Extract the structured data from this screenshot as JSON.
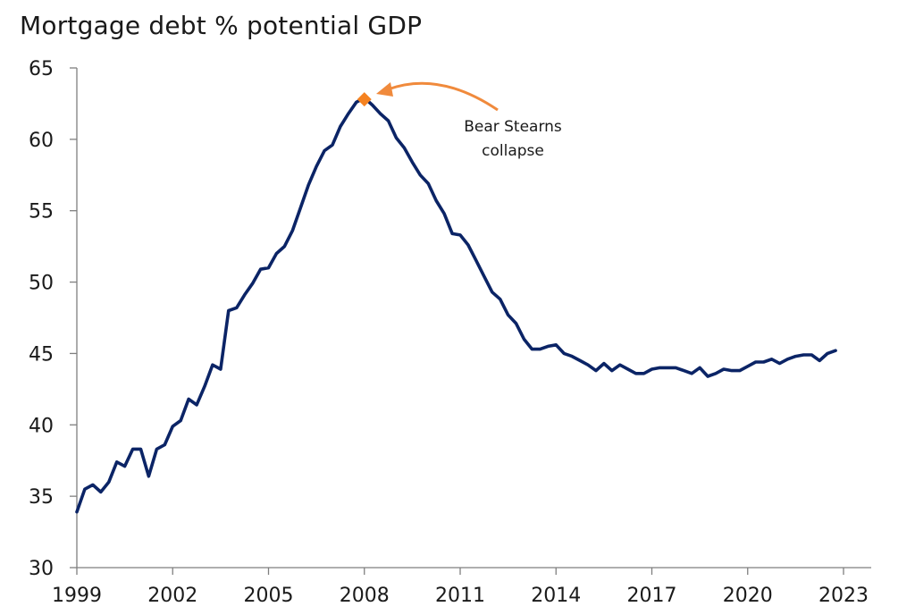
{
  "chart_data": {
    "type": "line",
    "title": "Mortgage debt % potential GDP",
    "xlabel": "",
    "ylabel": "",
    "xlim": [
      1999,
      2023.6
    ],
    "ylim": [
      30,
      65
    ],
    "y_ticks": [
      30,
      35,
      40,
      45,
      50,
      55,
      60,
      65
    ],
    "x_ticks": [
      1999,
      2002,
      2005,
      2008,
      2011,
      2014,
      2017,
      2020,
      2023
    ],
    "grid": false,
    "legend": "none",
    "series": [
      {
        "color": "#0b2466",
        "x": [
          1999.0,
          1999.25,
          1999.5,
          1999.75,
          2000.0,
          2000.25,
          2000.5,
          2000.75,
          2001.0,
          2001.25,
          2001.5,
          2001.75,
          2002.0,
          2002.25,
          2002.5,
          2002.75,
          2003.0,
          2003.25,
          2003.5,
          2003.75,
          2004.0,
          2004.25,
          2004.5,
          2004.75,
          2005.0,
          2005.25,
          2005.5,
          2005.75,
          2006.0,
          2006.25,
          2006.5,
          2006.75,
          2007.0,
          2007.25,
          2007.5,
          2007.75,
          2008.0,
          2008.25,
          2008.5,
          2008.75,
          2009.0,
          2009.25,
          2009.5,
          2009.75,
          2010.0,
          2010.25,
          2010.5,
          2010.75,
          2011.0,
          2011.25,
          2011.5,
          2011.75,
          2012.0,
          2012.25,
          2012.5,
          2012.75,
          2013.0,
          2013.25,
          2013.5,
          2013.75,
          2014.0,
          2014.25,
          2014.5,
          2014.75,
          2015.0,
          2015.25,
          2015.5,
          2015.75,
          2016.0,
          2016.25,
          2016.5,
          2016.75,
          2017.0,
          2017.25,
          2017.5,
          2017.75,
          2018.0,
          2018.25,
          2018.5,
          2018.75,
          2019.0,
          2019.25,
          2019.5,
          2019.75,
          2020.0,
          2020.25,
          2020.5,
          2020.75,
          2021.0,
          2021.25,
          2021.5,
          2021.75,
          2022.0,
          2022.25,
          2022.5,
          2022.75
        ],
        "values": [
          33.9,
          35.5,
          35.8,
          35.3,
          36.0,
          37.4,
          37.1,
          38.3,
          38.3,
          36.4,
          38.3,
          38.6,
          39.9,
          40.3,
          41.8,
          41.4,
          42.7,
          44.2,
          43.9,
          48.0,
          48.2,
          49.1,
          49.9,
          50.9,
          51.0,
          52.0,
          52.5,
          53.6,
          55.2,
          56.8,
          58.1,
          59.2,
          59.6,
          60.9,
          61.8,
          62.6,
          62.9,
          62.4,
          61.8,
          61.3,
          60.1,
          59.4,
          58.4,
          57.5,
          56.9,
          55.7,
          54.8,
          53.4,
          53.3,
          52.6,
          51.5,
          50.4,
          49.3,
          48.8,
          47.7,
          47.1,
          46.0,
          45.3,
          45.3,
          45.5,
          45.6,
          45.0,
          44.8,
          44.5,
          44.2,
          43.8,
          44.3,
          43.8,
          44.2,
          43.9,
          43.6,
          43.6,
          43.9,
          44.0,
          44.0,
          44.0,
          43.8,
          43.6,
          44.0,
          43.4,
          43.6,
          43.9,
          43.8,
          43.8,
          44.1,
          44.4,
          44.4,
          44.6,
          44.3,
          44.6,
          44.8,
          44.9,
          44.9,
          44.5,
          45.0,
          45.2
        ]
      }
    ],
    "annotation": {
      "line1": "Bear Stearns",
      "line2": "collapse",
      "marker_x": 2008.0,
      "marker_y": 62.8,
      "marker_color": "#f58220",
      "arrow_color": "#f08a3c"
    }
  }
}
